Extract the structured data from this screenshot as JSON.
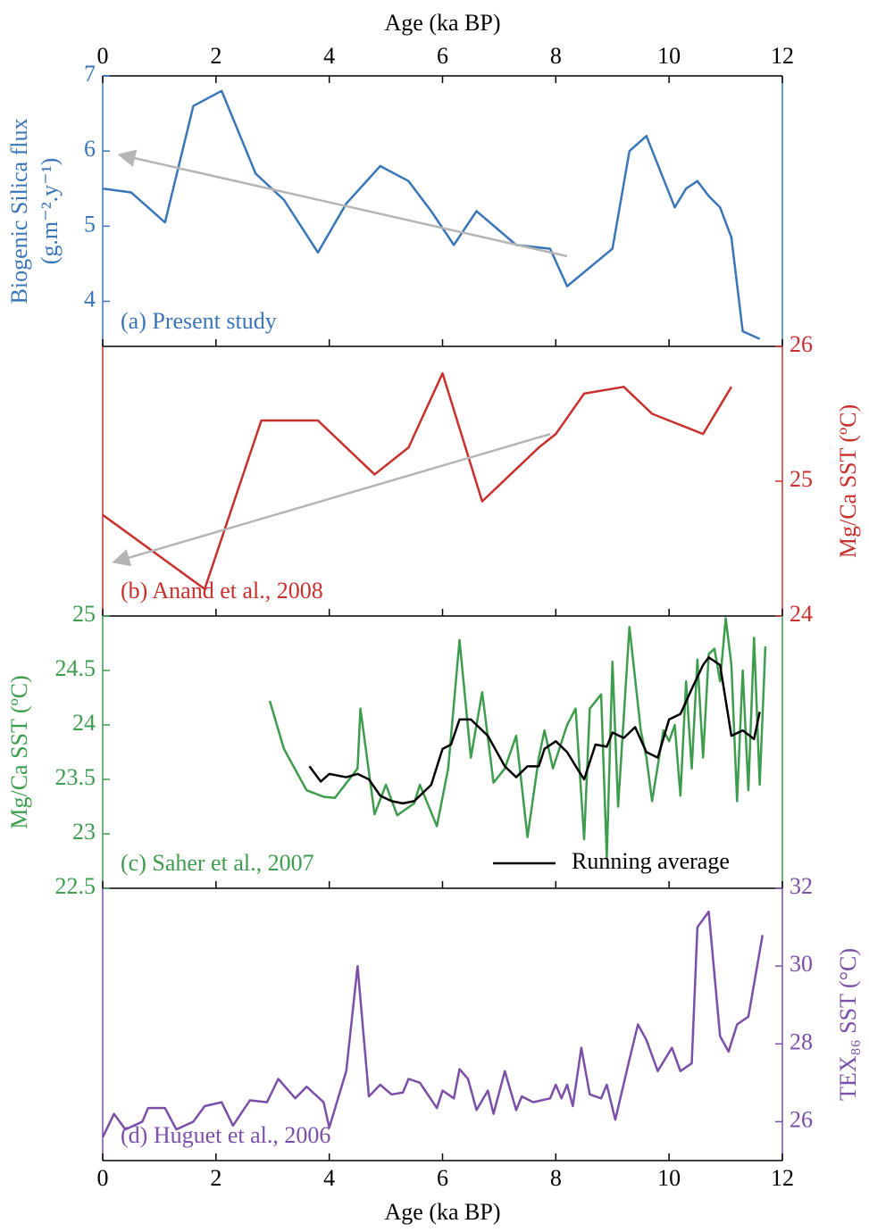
{
  "chart_data": [
    {
      "type": "line",
      "label": "(a) Present study",
      "ylabel": [
        "Biogenic Silica flux",
        "(g.m⁻².y⁻¹)"
      ],
      "yside": "left",
      "xlabel": "Age (ka BP)",
      "xlabel_side": "top",
      "xlim": [
        0,
        12
      ],
      "xticks": [
        0,
        2,
        4,
        6,
        8,
        10,
        12
      ],
      "ylim": [
        3.4,
        7
      ],
      "yticks": [
        4,
        5,
        6,
        7
      ],
      "color": "#3a75b8",
      "series": [
        {
          "color": "#3a75b8",
          "x": [
            0,
            0.5,
            1.1,
            1.6,
            2.1,
            2.7,
            3.2,
            3.8,
            4.3,
            4.9,
            5.4,
            5.8,
            6.2,
            6.6,
            7.3,
            7.9,
            8.2,
            9.0,
            9.3,
            9.6,
            10.1,
            10.3,
            10.5,
            10.7,
            10.9,
            11.1,
            11.3,
            11.6
          ],
          "values": [
            5.5,
            5.45,
            5.05,
            6.6,
            6.8,
            5.7,
            5.35,
            4.65,
            5.3,
            5.8,
            5.6,
            5.2,
            4.75,
            5.2,
            4.75,
            4.7,
            4.2,
            4.7,
            6.0,
            6.2,
            5.25,
            5.5,
            5.6,
            5.4,
            5.25,
            4.85,
            3.6,
            3.5
          ]
        }
      ],
      "arrow": {
        "from": [
          8.2,
          4.6
        ],
        "to": [
          0.3,
          5.95
        ],
        "color": "#b5b5b5"
      }
    },
    {
      "type": "line",
      "label": "(b) Anand et al., 2008",
      "ylabel": [
        "Mg/Ca SST (ºC)"
      ],
      "yside": "right",
      "xlim": [
        0,
        12
      ],
      "xticks": [
        0,
        2,
        4,
        6,
        8,
        10,
        12
      ],
      "ylim": [
        24,
        26
      ],
      "yticks": [
        24,
        25,
        26
      ],
      "color": "#c8302e",
      "series": [
        {
          "color": "#c8302e",
          "x": [
            0,
            1.8,
            2.8,
            3.8,
            4.8,
            5.4,
            6.0,
            6.7,
            7.2,
            7.7,
            8.0,
            8.5,
            9.2,
            9.7,
            10.6,
            11.1
          ],
          "values": [
            24.75,
            24.2,
            25.45,
            25.45,
            25.05,
            25.25,
            25.8,
            24.85,
            25.05,
            25.25,
            25.35,
            25.65,
            25.7,
            25.5,
            25.35,
            25.7
          ]
        }
      ],
      "arrow": {
        "from": [
          7.9,
          25.35
        ],
        "to": [
          0.2,
          24.4
        ],
        "color": "#b5b5b5"
      }
    },
    {
      "type": "line",
      "label": "(c) Saher et al., 2007",
      "ylabel": [
        "Mg/Ca SST (ºC)"
      ],
      "yside": "left",
      "xlim": [
        0,
        12
      ],
      "xticks": [
        0,
        2,
        4,
        6,
        8,
        10,
        12
      ],
      "ylim": [
        22.5,
        25
      ],
      "yticks": [
        22.5,
        23,
        23.5,
        24,
        24.5,
        25
      ],
      "color": "#3e9c4e",
      "series": [
        {
          "color": "#3e9c4e",
          "x": [
            2.95,
            3.2,
            3.6,
            3.9,
            4.1,
            4.5,
            4.55,
            4.8,
            5.0,
            5.2,
            5.5,
            5.6,
            5.9,
            6.1,
            6.3,
            6.5,
            6.7,
            6.9,
            7.1,
            7.3,
            7.5,
            7.7,
            7.8,
            7.95,
            8.2,
            8.35,
            8.5,
            8.6,
            8.8,
            8.9,
            9.0,
            9.1,
            9.3,
            9.5,
            9.6,
            9.7,
            9.9,
            10.0,
            10.1,
            10.2,
            10.3,
            10.4,
            10.5,
            10.6,
            10.7,
            10.8,
            10.9,
            11.0,
            11.1,
            11.2,
            11.3,
            11.4,
            11.5,
            11.6,
            11.7
          ],
          "values": [
            24.22,
            23.78,
            23.4,
            23.34,
            23.33,
            23.6,
            24.15,
            23.18,
            23.45,
            23.17,
            23.28,
            23.45,
            23.07,
            23.6,
            24.78,
            23.7,
            24.3,
            23.47,
            23.6,
            23.9,
            22.97,
            23.7,
            23.95,
            23.6,
            24.0,
            24.15,
            22.95,
            24.15,
            24.28,
            22.78,
            24.58,
            23.25,
            24.9,
            23.95,
            23.7,
            23.3,
            23.95,
            23.85,
            24.0,
            23.35,
            24.4,
            23.6,
            24.6,
            23.7,
            24.65,
            24.7,
            24.4,
            24.98,
            24.55,
            23.3,
            24.5,
            23.4,
            24.8,
            23.45,
            24.72
          ]
        },
        {
          "name": "Running average",
          "color": "#000000",
          "x": [
            3.65,
            3.85,
            4.0,
            4.3,
            4.5,
            4.7,
            4.9,
            5.1,
            5.3,
            5.5,
            5.8,
            6.0,
            6.15,
            6.3,
            6.5,
            6.8,
            7.1,
            7.3,
            7.5,
            7.7,
            7.8,
            8.0,
            8.2,
            8.4,
            8.5,
            8.7,
            8.9,
            9.0,
            9.2,
            9.4,
            9.6,
            9.8,
            10.0,
            10.2,
            10.4,
            10.6,
            10.7,
            10.9,
            11.1,
            11.3,
            11.5,
            11.6
          ],
          "values": [
            23.62,
            23.48,
            23.55,
            23.52,
            23.55,
            23.5,
            23.35,
            23.3,
            23.28,
            23.3,
            23.45,
            23.78,
            23.82,
            24.05,
            24.05,
            23.9,
            23.62,
            23.52,
            23.62,
            23.62,
            23.78,
            23.85,
            23.75,
            23.58,
            23.5,
            23.82,
            23.8,
            23.93,
            23.88,
            23.98,
            23.75,
            23.7,
            24.05,
            24.1,
            24.33,
            24.55,
            24.62,
            24.55,
            23.9,
            23.95,
            23.87,
            24.12
          ]
        }
      ]
    },
    {
      "type": "line",
      "label": "(d) Huguet et al., 2006",
      "ylabel": [
        "TEX₈₆ SST (°C)"
      ],
      "yside": "right",
      "xlabel": "Age (ka BP)",
      "xlabel_side": "bottom",
      "xlim": [
        0,
        12
      ],
      "xticks": [
        0,
        2,
        4,
        6,
        8,
        10,
        12
      ],
      "ylim": [
        25,
        32
      ],
      "yticks": [
        26,
        28,
        30,
        32
      ],
      "color": "#7b4fa8",
      "series": [
        {
          "color": "#7b4fa8",
          "x": [
            0,
            0.2,
            0.4,
            0.7,
            0.8,
            1.1,
            1.3,
            1.6,
            1.8,
            2.1,
            2.3,
            2.6,
            2.9,
            3.1,
            3.4,
            3.6,
            3.9,
            4.0,
            4.3,
            4.5,
            4.7,
            4.9,
            5.1,
            5.3,
            5.4,
            5.6,
            5.9,
            6.0,
            6.2,
            6.3,
            6.45,
            6.6,
            6.8,
            6.9,
            7.1,
            7.3,
            7.4,
            7.6,
            7.9,
            8.0,
            8.1,
            8.2,
            8.3,
            8.45,
            8.6,
            8.8,
            8.9,
            9.05,
            9.3,
            9.45,
            9.6,
            9.8,
            10.05,
            10.2,
            10.4,
            10.5,
            10.7,
            10.9,
            11.05,
            11.2,
            11.4,
            11.65
          ],
          "values": [
            25.6,
            26.2,
            25.8,
            26,
            26.35,
            26.35,
            25.8,
            26,
            26.4,
            26.5,
            25.9,
            26.55,
            26.5,
            27.1,
            26.6,
            26.9,
            26.5,
            25.85,
            27.3,
            30,
            26.65,
            26.95,
            26.7,
            26.75,
            27.1,
            27.0,
            26.35,
            26.8,
            26.6,
            27.35,
            27.1,
            26.3,
            26.8,
            26.2,
            27.3,
            26.3,
            26.65,
            26.5,
            26.6,
            26.95,
            26.6,
            26.95,
            26.4,
            27.9,
            26.7,
            26.6,
            26.95,
            26.05,
            27.6,
            28.5,
            28.1,
            27.3,
            27.9,
            27.3,
            27.5,
            31,
            31.4,
            28.2,
            27.8,
            28.5,
            28.7,
            30.8
          ]
        }
      ]
    }
  ]
}
